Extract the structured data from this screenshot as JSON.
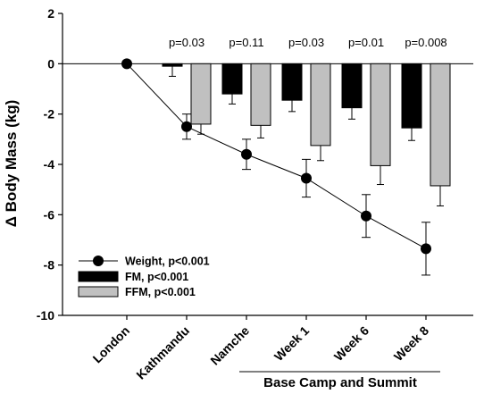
{
  "chart_data": {
    "type": "bar",
    "ylabel": "Δ Body Mass (kg)",
    "ylim": [
      -10,
      2
    ],
    "yticks": [
      2,
      0,
      -2,
      -4,
      -6,
      -8,
      -10
    ],
    "categories": [
      "London",
      "Kathmandu",
      "Namche",
      "Week 1",
      "Week 6",
      "Week 8"
    ],
    "group_label": "Base Camp and Summit",
    "series": [
      {
        "name": "FM, p<0.001",
        "kind": "bar",
        "color": "#000000",
        "values": [
          null,
          -0.1,
          -1.2,
          -1.45,
          -1.75,
          -2.55
        ],
        "errors": [
          null,
          0.4,
          0.4,
          0.45,
          0.45,
          0.5
        ]
      },
      {
        "name": "FFM, p<0.001",
        "kind": "bar",
        "color": "#c0c0c0",
        "values": [
          null,
          -2.4,
          -2.45,
          -3.25,
          -4.05,
          -4.85
        ],
        "errors": [
          null,
          0.4,
          0.5,
          0.6,
          0.75,
          0.8
        ]
      },
      {
        "name": "Weight, p<0.001",
        "kind": "line",
        "color": "#000000",
        "values": [
          0,
          -2.5,
          -3.6,
          -4.55,
          -6.05,
          -7.35
        ],
        "errors": [
          0,
          0.5,
          0.6,
          0.75,
          0.85,
          1.05
        ]
      }
    ],
    "annotations": [
      "",
      "p=0.03",
      "p=0.11",
      "p=0.03",
      "p=0.01",
      "p=0.008"
    ],
    "legend_position": "bottom-left"
  }
}
